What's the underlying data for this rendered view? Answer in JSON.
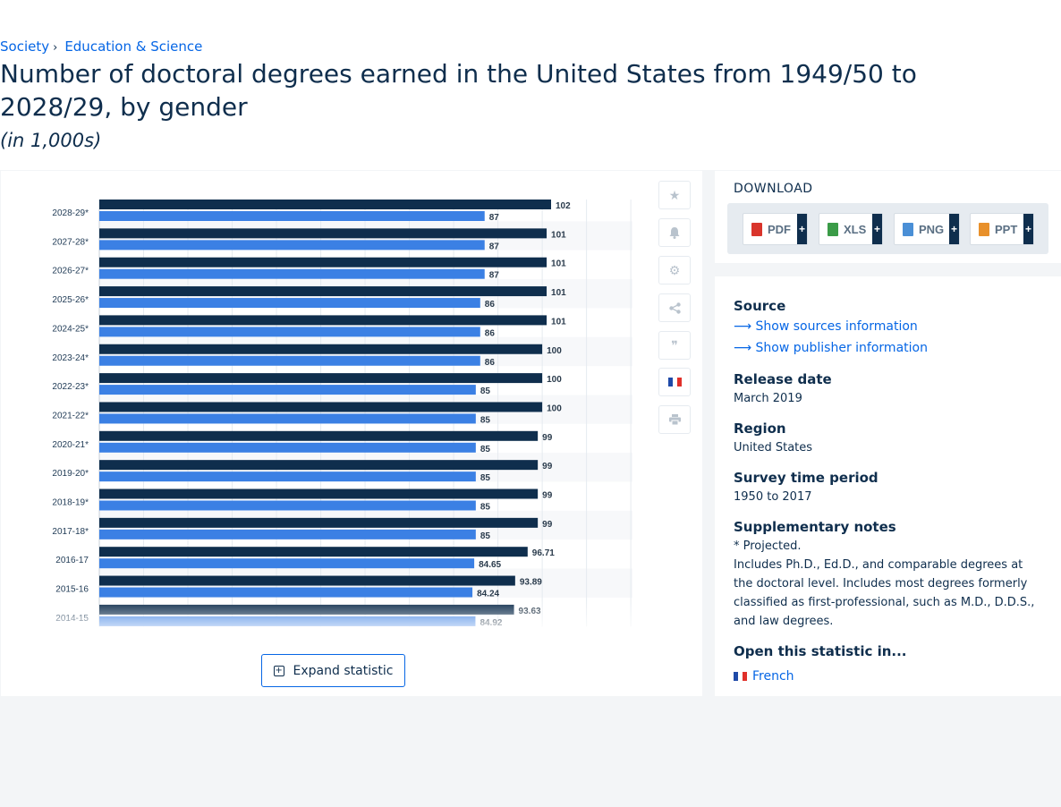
{
  "breadcrumb": {
    "items": [
      "Society",
      "Education & Science"
    ],
    "separator": "›"
  },
  "title": "Number of doctoral degrees earned in the United States from 1949/50 to 2028/29, by gender",
  "unit": "(in 1,000s)",
  "tools": {
    "icons": [
      "star-icon",
      "bell-icon",
      "gear-icon",
      "share-icon",
      "quote-icon",
      "flag-icon",
      "print-icon"
    ]
  },
  "expand_button": {
    "label": "Expand statistic"
  },
  "download": {
    "title": "DOWNLOAD",
    "formats": [
      {
        "label": "PDF",
        "color": "#d9342b"
      },
      {
        "label": "XLS",
        "color": "#3a9b47"
      },
      {
        "label": "PNG",
        "color": "#4a8fd6"
      },
      {
        "label": "PPT",
        "color": "#e8902a"
      }
    ],
    "plus": "+"
  },
  "info": {
    "source_label": "Source",
    "show_sources": "Show sources information",
    "show_publisher": "Show publisher information",
    "release_label": "Release date",
    "release_value": "March 2019",
    "region_label": "Region",
    "region_value": "United States",
    "survey_label": "Survey time period",
    "survey_value": "1950 to 2017",
    "notes_label": "Supplementary notes",
    "notes_projected": "* Projected.",
    "notes_text": "Includes Ph.D., Ed.D., and comparable degrees at the doctoral level. Includes most degrees formerly classified as first-professional, such as M.D., D.D.S., and law degrees.",
    "open_label": "Open this statistic in...",
    "open_french": "French"
  },
  "chart_data": {
    "type": "bar",
    "orientation": "horizontal",
    "categories": [
      "2028-29*",
      "2027-28*",
      "2026-27*",
      "2025-26*",
      "2024-25*",
      "2023-24*",
      "2022-23*",
      "2021-22*",
      "2020-21*",
      "2019-20*",
      "2018-19*",
      "2017-18*",
      "2016-17",
      "2015-16",
      "2014-15"
    ],
    "series": [
      {
        "values": [
          102,
          101,
          101,
          101,
          101,
          100,
          100,
          100,
          99,
          99,
          99,
          99,
          96.71,
          93.89,
          93.63
        ],
        "labels": [
          "102",
          "101",
          "101",
          "101",
          "101",
          "100",
          "100",
          "100",
          "99",
          "99",
          "99",
          "99",
          "96.71",
          "93.89",
          "93.63"
        ],
        "color": "#0f2e4d"
      },
      {
        "values": [
          87,
          87,
          87,
          86,
          86,
          86,
          85,
          85,
          85,
          85,
          85,
          85,
          84.65,
          84.24,
          84.92
        ],
        "labels": [
          "87",
          "87",
          "87",
          "86",
          "86",
          "86",
          "85",
          "85",
          "85",
          "85",
          "85",
          "85",
          "84.65",
          "84.24",
          "84.92"
        ],
        "color": "#3b80e4"
      }
    ],
    "xlim": [
      0,
      120
    ],
    "grid": true,
    "legend": "none"
  }
}
